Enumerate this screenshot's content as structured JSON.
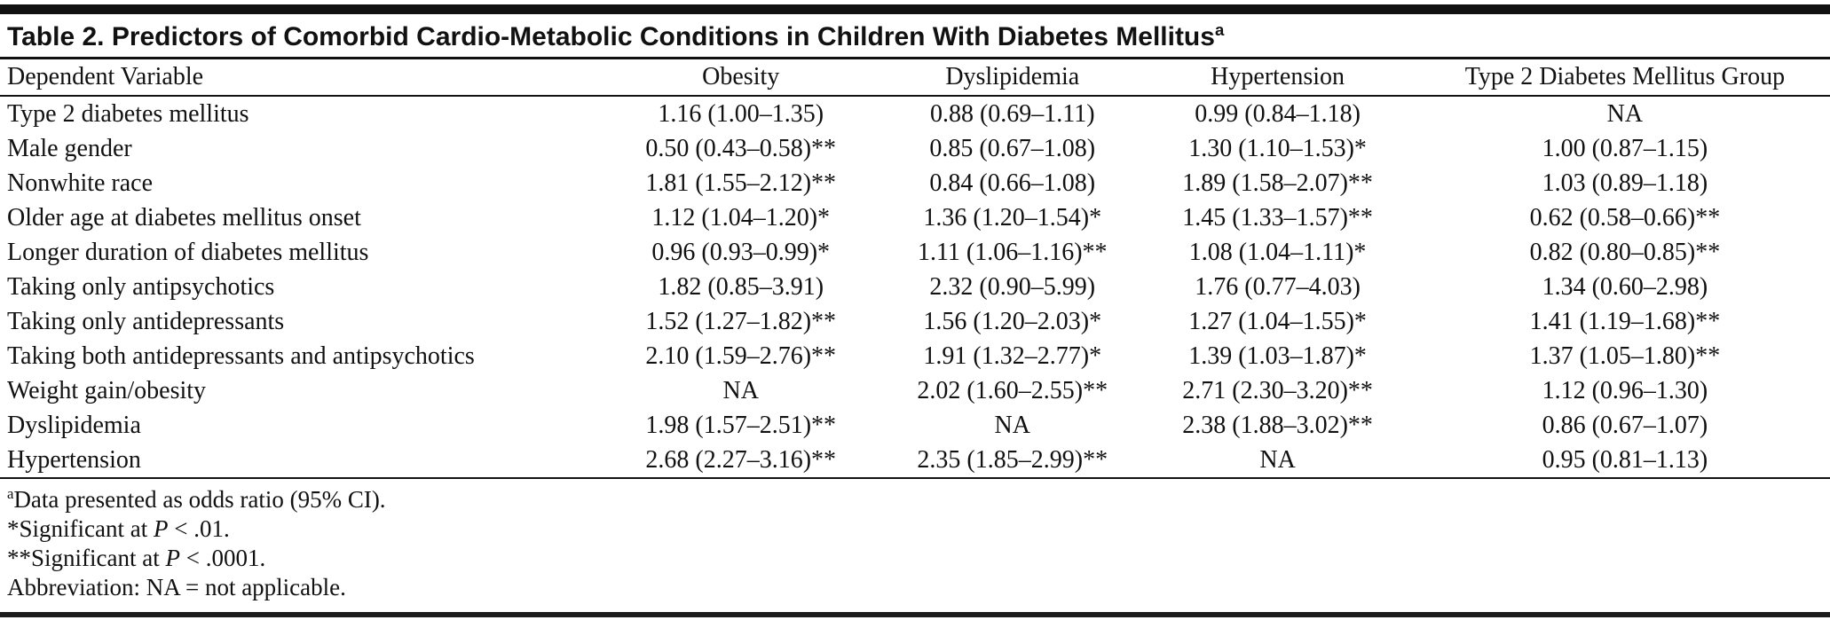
{
  "page": {
    "title": {
      "text": "Table 2. Predictors of Comorbid Cardio-Metabolic Conditions in Children With Diabetes Mellitus",
      "superscript": "a"
    },
    "columns": [
      "Dependent Variable",
      "Obesity",
      "Dyslipidemia",
      "Hypertension",
      "Type 2 Diabetes Mellitus Group"
    ],
    "rows": [
      {
        "label": "Type 2 diabetes mellitus",
        "cells": [
          "1.16 (1.00–1.35)",
          "0.88 (0.69–1.11)",
          "0.99 (0.84–1.18)",
          "NA"
        ]
      },
      {
        "label": "Male gender",
        "cells": [
          "0.50 (0.43–0.58)**",
          "0.85 (0.67–1.08)",
          "1.30 (1.10–1.53)*",
          "1.00 (0.87–1.15)"
        ]
      },
      {
        "label": "Nonwhite race",
        "cells": [
          "1.81 (1.55–2.12)**",
          "0.84 (0.66–1.08)",
          "1.89 (1.58–2.07)**",
          "1.03 (0.89–1.18)"
        ]
      },
      {
        "label": "Older age at diabetes mellitus onset",
        "cells": [
          "1.12 (1.04–1.20)*",
          "1.36 (1.20–1.54)*",
          "1.45 (1.33–1.57)**",
          "0.62 (0.58–0.66)**"
        ]
      },
      {
        "label": "Longer duration of diabetes mellitus",
        "cells": [
          "0.96 (0.93–0.99)*",
          "1.11 (1.06–1.16)**",
          "1.08 (1.04–1.11)*",
          "0.82 (0.80–0.85)**"
        ]
      },
      {
        "label": "Taking only antipsychotics",
        "cells": [
          "1.82 (0.85–3.91)",
          "2.32 (0.90–5.99)",
          "1.76 (0.77–4.03)",
          "1.34 (0.60–2.98)"
        ]
      },
      {
        "label": "Taking only antidepressants",
        "cells": [
          "1.52 (1.27–1.82)**",
          "1.56 (1.20–2.03)*",
          "1.27 (1.04–1.55)*",
          "1.41 (1.19–1.68)**"
        ]
      },
      {
        "label": "Taking both antidepressants and antipsychotics",
        "cells": [
          "2.10 (1.59–2.76)**",
          "1.91 (1.32–2.77)*",
          "1.39 (1.03–1.87)*",
          "1.37 (1.05–1.80)**"
        ]
      },
      {
        "label": "Weight gain/obesity",
        "cells": [
          "NA",
          "2.02 (1.60–2.55)**",
          "2.71 (2.30–3.20)**",
          "1.12 (0.96–1.30)"
        ]
      },
      {
        "label": "Dyslipidemia",
        "cells": [
          "1.98 (1.57–2.51)**",
          "NA",
          "2.38 (1.88–3.02)**",
          "0.86 (0.67–1.07)"
        ]
      },
      {
        "label": "Hypertension",
        "cells": [
          "2.68 (2.27–3.16)**",
          "2.35 (1.85–2.99)**",
          "NA",
          "0.95 (0.81–1.13)"
        ]
      }
    ],
    "footnotes": [
      {
        "sup": "a",
        "segments": [
          {
            "text": "Data presented as odds ratio (95% CI)."
          }
        ]
      },
      {
        "sup": "",
        "segments": [
          {
            "text": "*Significant at "
          },
          {
            "text": "P",
            "italic": true
          },
          {
            "text": " < .01."
          }
        ]
      },
      {
        "sup": "",
        "segments": [
          {
            "text": "**Significant at "
          },
          {
            "text": "P",
            "italic": true
          },
          {
            "text": " < .0001."
          }
        ]
      },
      {
        "sup": "",
        "segments": [
          {
            "text": "Abbreviation: NA = not applicable."
          }
        ]
      }
    ],
    "colors": {
      "text": "#111111",
      "rule": "#111111",
      "background": "#ffffff"
    }
  }
}
